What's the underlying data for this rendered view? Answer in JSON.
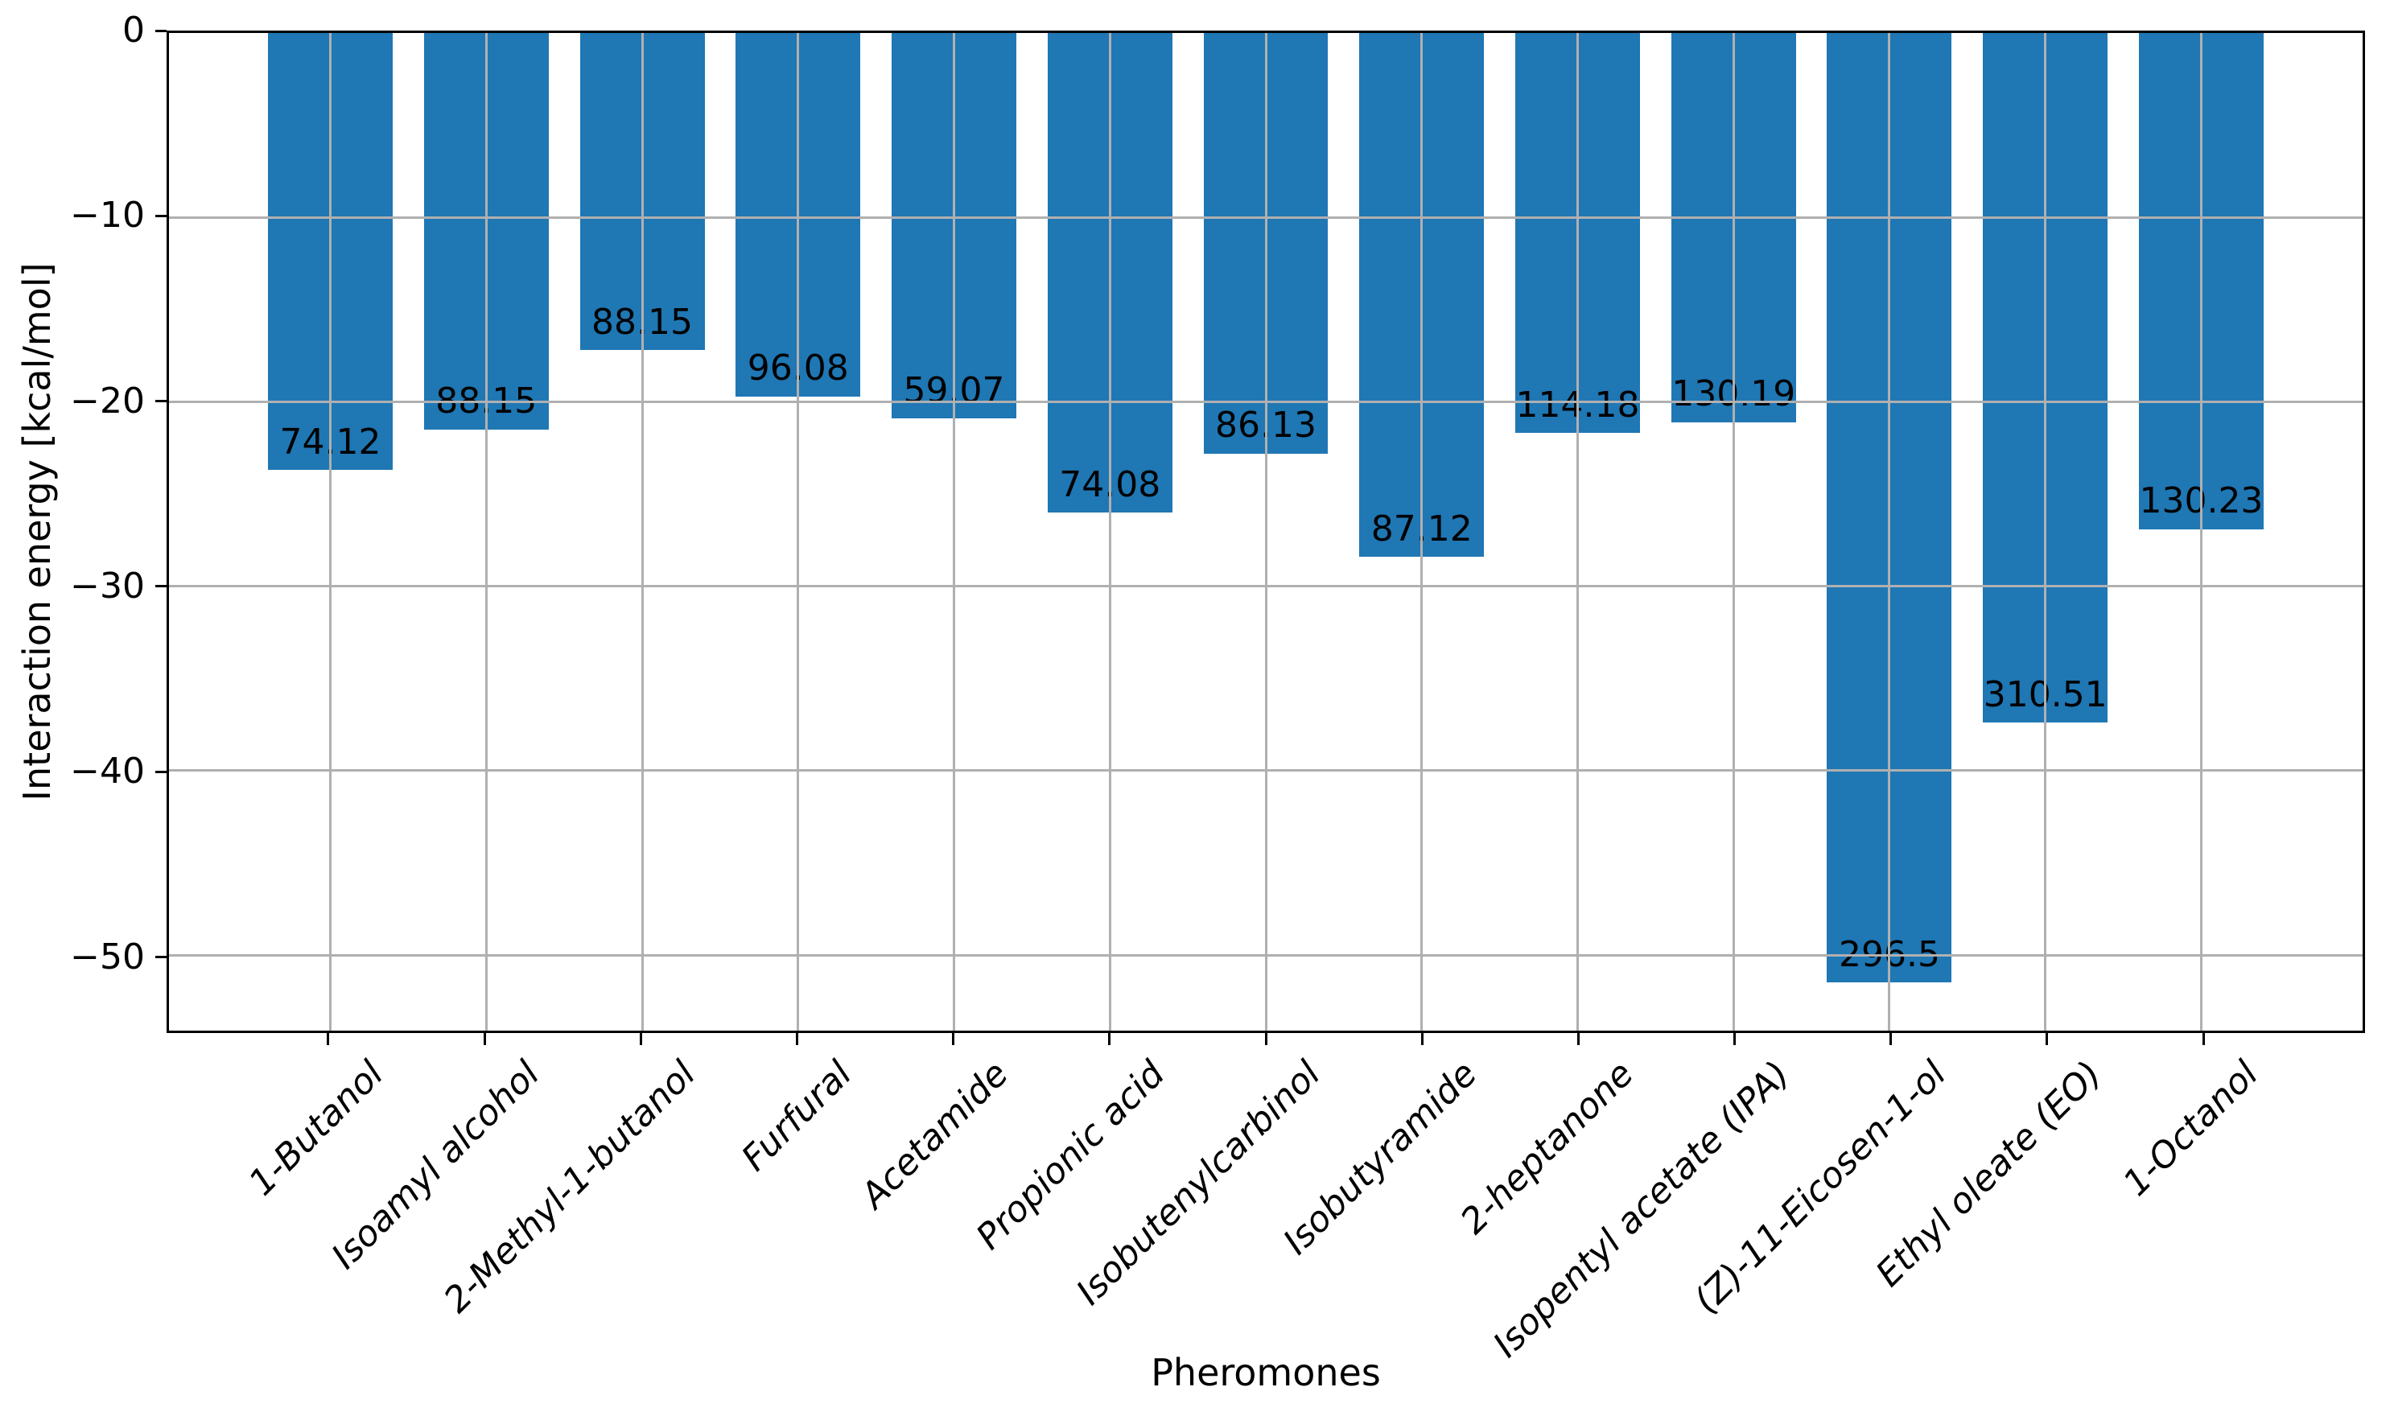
{
  "chart_data": {
    "type": "bar",
    "title": "",
    "xlabel": "Pheromones",
    "ylabel": "Interaction energy [kcal/mol]",
    "categories": [
      "1-Butanol",
      "Isoamyl alcohol",
      "2-Methyl-1-butanol",
      "Furfural",
      "Acetamide",
      "Propionic acid",
      "Isobutenylcarbinol",
      "Isobutyramide",
      "2-heptanone",
      "Isopentyl acetate (IPA)",
      "(Z)-11-Eicosen-1-ol",
      "Ethyl oleate (EO)",
      "1-Octanol"
    ],
    "values": [
      -23.7,
      -21.5,
      -17.2,
      -19.7,
      -20.9,
      -26.0,
      -22.8,
      -28.4,
      -21.7,
      -21.1,
      -51.5,
      -37.4,
      -26.9
    ],
    "bar_labels": [
      "74.12",
      "88.15",
      "88.15",
      "96.08",
      "59.07",
      "74.08",
      "86.13",
      "87.12",
      "114.18",
      "130.19",
      "296.5",
      "310.51",
      "130.23"
    ],
    "yticks": [
      0,
      -10,
      -20,
      -30,
      -40,
      -50
    ],
    "ytick_labels": [
      "0",
      "−10",
      "−20",
      "−30",
      "−40",
      "−50"
    ],
    "ylim": [
      -54.1,
      0
    ],
    "xlim": [
      -1.035,
      13.035
    ],
    "bar_width": 0.8,
    "grid": true,
    "legend_position": "none",
    "bar_color": "#1f77b4",
    "grid_color": "#b0b0b0",
    "spine_color": "#000000",
    "text_color": "#000000",
    "background_color": "#ffffff"
  }
}
